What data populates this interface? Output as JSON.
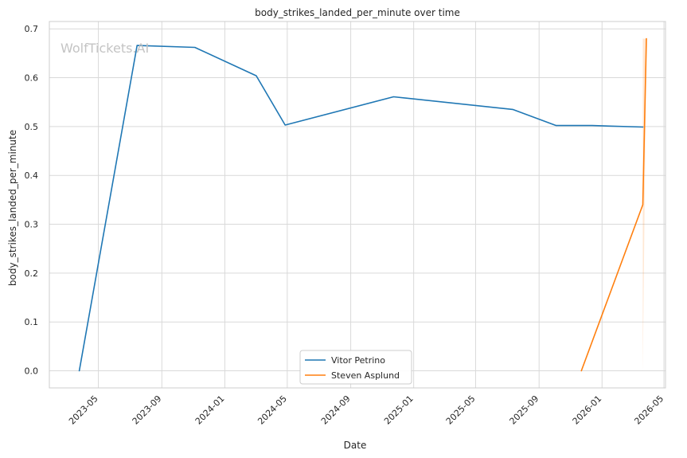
{
  "watermark": "WolfTickets.AI",
  "chart_data": {
    "type": "line",
    "title": "body_strikes_landed_per_minute over time",
    "xlabel": "Date",
    "ylabel": "body_strikes_landed_per_minute",
    "x_ticks": [
      "2023-05",
      "2023-09",
      "2024-01",
      "2024-05",
      "2024-09",
      "2025-01",
      "2025-05",
      "2025-09",
      "2026-01",
      "2026-05"
    ],
    "xlim": [
      "2023-01-26",
      "2026-05-04"
    ],
    "ylim": [
      -0.035,
      0.715
    ],
    "y_ticks": [
      0.0,
      0.1,
      0.2,
      0.3,
      0.4,
      0.5,
      0.6,
      0.7
    ],
    "grid": true,
    "legend_position": "bottom-center",
    "series": [
      {
        "name": "Vitor Petrino",
        "color": "#1f77b4",
        "points": [
          {
            "x": "2023-03-25",
            "y": 0.0
          },
          {
            "x": "2023-07-15",
            "y": 0.666
          },
          {
            "x": "2023-11-04",
            "y": 0.662
          },
          {
            "x": "2024-03-02",
            "y": 0.604
          },
          {
            "x": "2024-04-27",
            "y": 0.503
          },
          {
            "x": "2024-11-23",
            "y": 0.561
          },
          {
            "x": "2025-07-12",
            "y": 0.535
          },
          {
            "x": "2025-10-04",
            "y": 0.502
          },
          {
            "x": "2025-12-13",
            "y": 0.502
          },
          {
            "x": "2026-03-21",
            "y": 0.499
          }
        ]
      },
      {
        "name": "Steven Asplund",
        "color": "#ff7f0e",
        "points": [
          {
            "x": "2025-11-22",
            "y": 0.0
          },
          {
            "x": "2026-03-21",
            "y": 0.34
          },
          {
            "x": "2026-03-28",
            "y": 0.68
          }
        ]
      }
    ]
  }
}
